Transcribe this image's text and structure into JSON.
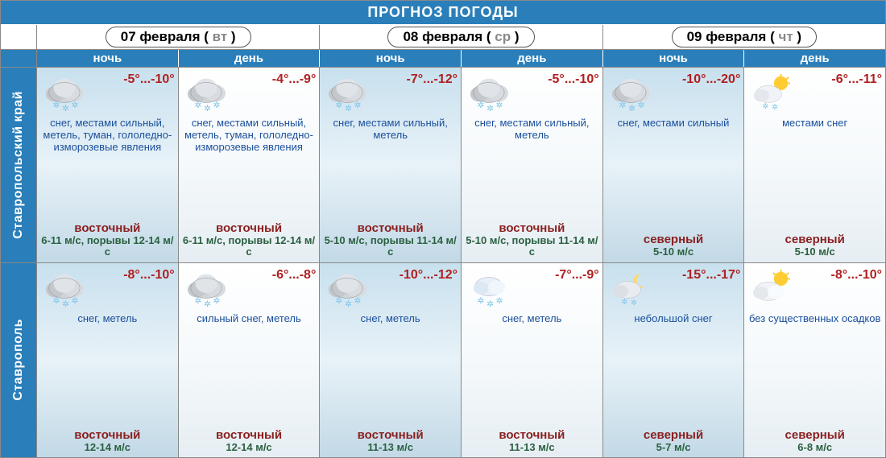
{
  "title": "ПРОГНОЗ ПОГОДЫ",
  "days": [
    {
      "date": "07 февраля",
      "abbr": "вт"
    },
    {
      "date": "08 февраля",
      "abbr": "ср"
    },
    {
      "date": "09 февраля",
      "abbr": "чт"
    }
  ],
  "periods": [
    "ночь",
    "день",
    "ночь",
    "день",
    "ночь",
    "день"
  ],
  "regions": [
    {
      "name": "Ставропольский край",
      "cells": [
        {
          "period": "night",
          "icon": "snow-heavy",
          "temp": "-5°...-10°",
          "desc": "снег, местами сильный, метель, туман, гололедно-изморозевые явления",
          "wind_dir": "восточный",
          "wind_spd": "6-11 м/с, порывы 12-14 м/с"
        },
        {
          "period": "day",
          "icon": "snow-heavy",
          "temp": "-4°...-9°",
          "desc": "снег, местами сильный, метель, туман, гололедно-изморозевые явления",
          "wind_dir": "восточный",
          "wind_spd": "6-11 м/с, порывы 12-14 м/с"
        },
        {
          "period": "night",
          "icon": "snow-heavy",
          "temp": "-7°...-12°",
          "desc": "снег, местами сильный, метель",
          "wind_dir": "восточный",
          "wind_spd": "5-10 м/с, порывы 11-14 м/с"
        },
        {
          "period": "day",
          "icon": "snow-heavy",
          "temp": "-5°...-10°",
          "desc": "снег, местами сильный, метель",
          "wind_dir": "восточный",
          "wind_spd": "5-10 м/с, порывы 11-14 м/с"
        },
        {
          "period": "night",
          "icon": "snow-heavy",
          "temp": "-10°...-20°",
          "desc": "снег, местами сильный",
          "wind_dir": "северный",
          "wind_spd": "5-10 м/с"
        },
        {
          "period": "day",
          "icon": "sun-snow",
          "temp": "-6°...-11°",
          "desc": "местами снег",
          "wind_dir": "северный",
          "wind_spd": "5-10 м/с"
        }
      ]
    },
    {
      "name": "Ставрополь",
      "cells": [
        {
          "period": "night",
          "icon": "snow-heavy",
          "temp": "-8°...-10°",
          "desc": "снег, метель",
          "wind_dir": "восточный",
          "wind_spd": "12-14 м/с"
        },
        {
          "period": "day",
          "icon": "snow-heavy",
          "temp": "-6°...-8°",
          "desc": "сильный снег, метель",
          "wind_dir": "восточный",
          "wind_spd": "12-14 м/с"
        },
        {
          "period": "night",
          "icon": "snow-heavy",
          "temp": "-10°...-12°",
          "desc": "снег, метель",
          "wind_dir": "восточный",
          "wind_spd": "11-13 м/с"
        },
        {
          "period": "day",
          "icon": "snow",
          "temp": "-7°...-9°",
          "desc": "снег, метель",
          "wind_dir": "восточный",
          "wind_spd": "11-13 м/с"
        },
        {
          "period": "night",
          "icon": "moon-snow",
          "temp": "-15°...-17°",
          "desc": "небольшой снег",
          "wind_dir": "северный",
          "wind_spd": "5-7 м/с"
        },
        {
          "period": "day",
          "icon": "sun-cloud",
          "temp": "-8°...-10°",
          "desc": "без существенных осадков",
          "wind_dir": "северный",
          "wind_spd": "6-8 м/с"
        }
      ]
    }
  ],
  "colors": {
    "header_bg": "#2a7fba",
    "temp": "#b02020",
    "desc": "#1a4f9c",
    "wind_dir": "#8b2020",
    "wind_spd": "#2a6040"
  }
}
